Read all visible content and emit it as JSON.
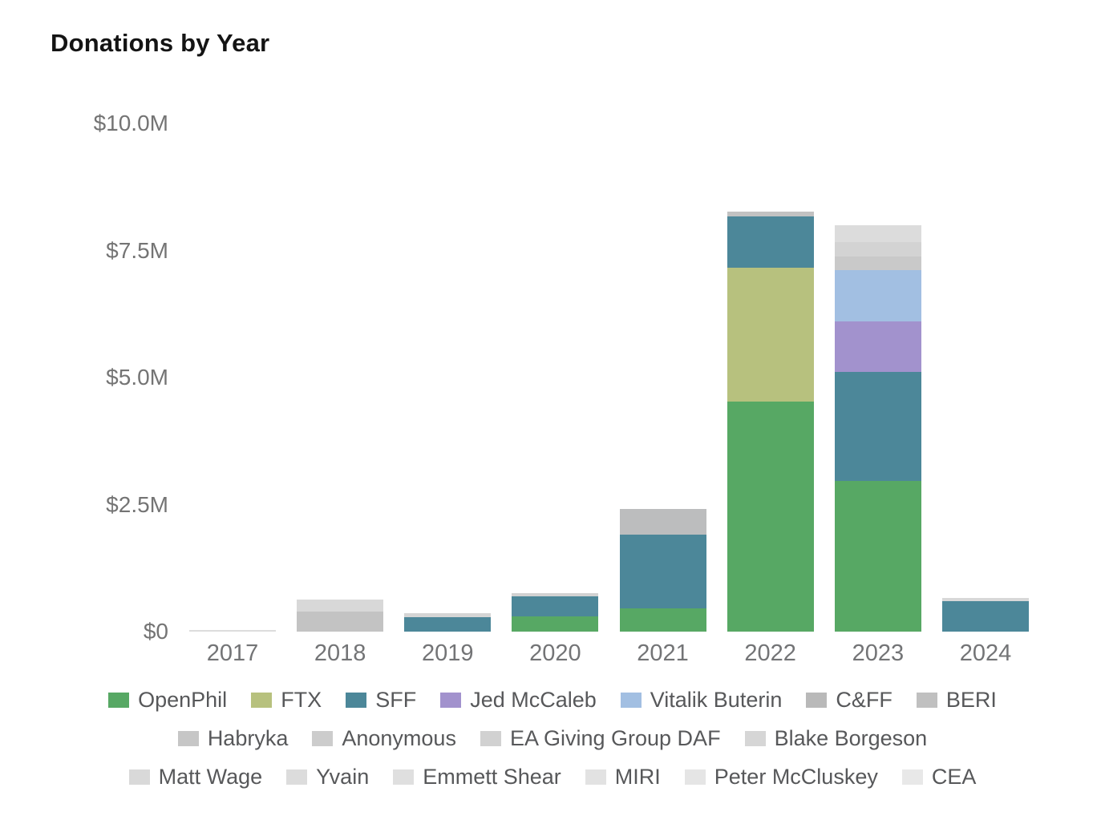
{
  "title": "Donations by Year",
  "accent_colors": {
    "openphil_green": "#57a864",
    "ftx_olive": "#b7c17e",
    "sff_teal": "#4c8799",
    "jed_mccaleb_purple": "#a292cd",
    "vitalik_blue": "#a2bfe2"
  },
  "chart_data": {
    "type": "bar",
    "stacked": true,
    "title": "Donations by Year",
    "xlabel": "",
    "ylabel": "",
    "unit": "USD, millions",
    "ylim": [
      0,
      10
    ],
    "grid": false,
    "legend_position": "bottom",
    "yticks": [
      {
        "value": 0,
        "label": "$0"
      },
      {
        "value": 2.5,
        "label": "$2.5M"
      },
      {
        "value": 5,
        "label": "$5.0M"
      },
      {
        "value": 7.5,
        "label": "$7.5M"
      },
      {
        "value": 10,
        "label": "$10.0M"
      }
    ],
    "categories": [
      "2017",
      "2018",
      "2019",
      "2020",
      "2021",
      "2022",
      "2023",
      "2024"
    ],
    "bars": [
      {
        "category": "2017",
        "total": 0.03,
        "segments": [
          {
            "name": "gray donor",
            "value": 0.03,
            "color": "#dcdcdc"
          }
        ]
      },
      {
        "category": "2018",
        "total": 0.63,
        "segments": [
          {
            "name": "gray donor",
            "value": 0.4,
            "color": "#c3c3c3"
          },
          {
            "name": "gray donor",
            "value": 0.23,
            "color": "#d8d8d8"
          }
        ]
      },
      {
        "category": "2019",
        "total": 0.36,
        "segments": [
          {
            "name": "SFF",
            "value": 0.29,
            "color": "#4c8799"
          },
          {
            "name": "gray donor",
            "value": 0.07,
            "color": "#d5d5d5"
          }
        ]
      },
      {
        "category": "2020",
        "total": 0.76,
        "segments": [
          {
            "name": "OpenPhil",
            "value": 0.3,
            "color": "#57a864"
          },
          {
            "name": "SFF",
            "value": 0.39,
            "color": "#4c8799"
          },
          {
            "name": "gray donor",
            "value": 0.07,
            "color": "#d2d2d2"
          }
        ]
      },
      {
        "category": "2021",
        "total": 2.41,
        "segments": [
          {
            "name": "OpenPhil",
            "value": 0.46,
            "color": "#57a864"
          },
          {
            "name": "SFF",
            "value": 1.45,
            "color": "#4c8799"
          },
          {
            "name": "gray donor",
            "value": 0.5,
            "color": "#bcbdbe"
          }
        ]
      },
      {
        "category": "2022",
        "total": 8.26,
        "segments": [
          {
            "name": "OpenPhil",
            "value": 4.53,
            "color": "#57a864"
          },
          {
            "name": "FTX",
            "value": 2.63,
            "color": "#b7c17e"
          },
          {
            "name": "SFF",
            "value": 1.01,
            "color": "#4c8799"
          },
          {
            "name": "gray donor",
            "value": 0.09,
            "color": "#c2c2c2"
          }
        ]
      },
      {
        "category": "2023",
        "total": 7.99,
        "segments": [
          {
            "name": "OpenPhil",
            "value": 2.97,
            "color": "#57a864"
          },
          {
            "name": "SFF",
            "value": 2.14,
            "color": "#4c8799"
          },
          {
            "name": "Jed McCaleb",
            "value": 0.99,
            "color": "#a292cd"
          },
          {
            "name": "Vitalik Buterin",
            "value": 1.01,
            "color": "#a2bfe2"
          },
          {
            "name": "gray donor",
            "value": 0.27,
            "color": "#c9c9c9"
          },
          {
            "name": "gray donor",
            "value": 0.28,
            "color": "#d3d3d3"
          },
          {
            "name": "gray donor",
            "value": 0.33,
            "color": "#dcdcdc"
          }
        ]
      },
      {
        "category": "2024",
        "total": 0.66,
        "segments": [
          {
            "name": "SFF",
            "value": 0.6,
            "color": "#4c8799"
          },
          {
            "name": "gray donor",
            "value": 0.06,
            "color": "#d8d8d8"
          }
        ]
      }
    ],
    "legend": {
      "rows": [
        [
          {
            "label": "OpenPhil",
            "color": "#57a864"
          },
          {
            "label": "FTX",
            "color": "#b7c17e"
          },
          {
            "label": "SFF",
            "color": "#4c8799"
          },
          {
            "label": "Jed McCaleb",
            "color": "#a292cd"
          },
          {
            "label": "Vitalik Buterin",
            "color": "#a2bfe2"
          },
          {
            "label": "C&FF",
            "color": "#b9b9b9"
          },
          {
            "label": "BERI",
            "color": "#c0c0c0"
          }
        ],
        [
          {
            "label": "Habryka",
            "color": "#c6c6c6"
          },
          {
            "label": "Anonymous",
            "color": "#cccccc"
          },
          {
            "label": "EA Giving Group DAF",
            "color": "#d1d1d1"
          },
          {
            "label": "Blake Borgeson",
            "color": "#d6d6d6"
          }
        ],
        [
          {
            "label": "Matt Wage",
            "color": "#d9d9d9"
          },
          {
            "label": "Yvain",
            "color": "#dcdcdc"
          },
          {
            "label": "Emmett Shear",
            "color": "#dfdfdf"
          },
          {
            "label": "MIRI",
            "color": "#e2e2e2"
          },
          {
            "label": "Peter McCluskey",
            "color": "#e5e5e5"
          },
          {
            "label": "CEA",
            "color": "#e8e8e8"
          }
        ]
      ]
    }
  }
}
